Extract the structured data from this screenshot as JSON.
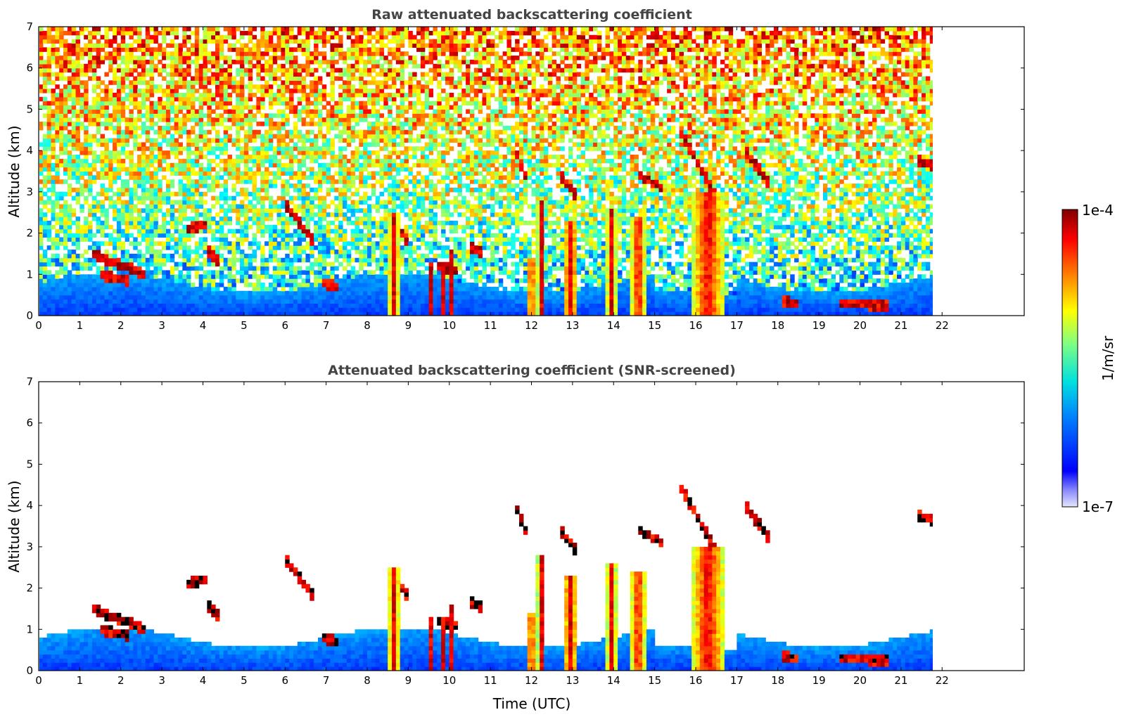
{
  "chart_data": [
    {
      "type": "heatmap",
      "title": "Raw attenuated backscattering coefficient",
      "xlabel": "",
      "ylabel": "Altitude (km)",
      "xlim": [
        0,
        24
      ],
      "ylim": [
        0,
        7
      ],
      "xticks": [
        "0",
        "1",
        "2",
        "3",
        "4",
        "5",
        "6",
        "7",
        "8",
        "9",
        "10",
        "11",
        "12",
        "13",
        "14",
        "15",
        "16",
        "17",
        "18",
        "19",
        "20",
        "21",
        "22"
      ],
      "yticks": [
        "0",
        "1",
        "2",
        "3",
        "4",
        "5",
        "6",
        "7"
      ],
      "data_time_range": [
        0,
        21.8
      ],
      "screened": false,
      "colormap": "jet",
      "color_scale": "log",
      "features": {
        "boundary_layer_top_km": 0.8,
        "precipitation_shafts": [
          {
            "t": 8.65,
            "width": 0.25,
            "top": 2.5
          },
          {
            "t": 9.55,
            "width": 0.12,
            "top": 1.3
          },
          {
            "t": 9.85,
            "width": 0.15,
            "top": 1.3
          },
          {
            "t": 10.05,
            "width": 0.18,
            "top": 1.6
          },
          {
            "t": 12.0,
            "width": 0.2,
            "top": 1.4
          },
          {
            "t": 12.25,
            "width": 0.2,
            "top": 2.8
          },
          {
            "t": 12.95,
            "width": 0.35,
            "top": 2.3
          },
          {
            "t": 13.95,
            "width": 0.22,
            "top": 2.6
          },
          {
            "t": 14.6,
            "width": 0.35,
            "top": 2.4
          },
          {
            "t": 16.3,
            "width": 0.8,
            "top": 3.0
          }
        ],
        "cloud_segments": [
          {
            "t0": 1.3,
            "t1": 2.6,
            "a0": 1.5,
            "a1": 1.0
          },
          {
            "t0": 1.5,
            "t1": 2.2,
            "a0": 1.0,
            "a1": 0.85
          },
          {
            "t0": 3.6,
            "t1": 4.1,
            "a0": 2.1,
            "a1": 2.2
          },
          {
            "t0": 4.1,
            "t1": 4.4,
            "a0": 1.6,
            "a1": 1.3
          },
          {
            "t0": 6.0,
            "t1": 6.7,
            "a0": 2.7,
            "a1": 1.8
          },
          {
            "t0": 6.9,
            "t1": 7.3,
            "a0": 0.8,
            "a1": 0.7
          },
          {
            "t0": 8.5,
            "t1": 9.0,
            "a0": 2.4,
            "a1": 1.8
          },
          {
            "t0": 9.7,
            "t1": 10.2,
            "a0": 1.2,
            "a1": 1.1
          },
          {
            "t0": 10.5,
            "t1": 10.8,
            "a0": 1.7,
            "a1": 1.5
          },
          {
            "t0": 11.6,
            "t1": 11.9,
            "a0": 4.0,
            "a1": 3.3
          },
          {
            "t0": 12.7,
            "t1": 13.1,
            "a0": 3.4,
            "a1": 2.9
          },
          {
            "t0": 14.6,
            "t1": 15.2,
            "a0": 3.4,
            "a1": 3.1
          },
          {
            "t0": 15.6,
            "t1": 16.5,
            "a0": 4.5,
            "a1": 2.9
          },
          {
            "t0": 17.2,
            "t1": 17.8,
            "a0": 4.0,
            "a1": 3.2
          },
          {
            "t0": 18.1,
            "t1": 18.5,
            "a0": 0.35,
            "a1": 0.3
          },
          {
            "t0": 19.5,
            "t1": 20.7,
            "a0": 0.3,
            "a1": 0.25
          },
          {
            "t0": 21.4,
            "t1": 21.8,
            "a0": 3.75,
            "a1": 3.65
          }
        ]
      }
    },
    {
      "type": "heatmap",
      "title": "Attenuated backscattering coefficient (SNR-screened)",
      "xlabel": "Time (UTC)",
      "ylabel": "Altitude (km)",
      "xlim": [
        0,
        24
      ],
      "ylim": [
        0,
        7
      ],
      "xticks": [
        "0",
        "1",
        "2",
        "3",
        "4",
        "5",
        "6",
        "7",
        "8",
        "9",
        "10",
        "11",
        "12",
        "13",
        "14",
        "15",
        "16",
        "17",
        "18",
        "19",
        "20",
        "21",
        "22"
      ],
      "yticks": [
        "0",
        "1",
        "2",
        "3",
        "4",
        "5",
        "6",
        "7"
      ],
      "data_time_range": [
        0,
        21.8
      ],
      "screened": true,
      "colormap": "jet",
      "color_scale": "log"
    }
  ],
  "colorbar": {
    "max_label": "1e-4",
    "min_label": "1e-7",
    "unit_label": "1/m/sr"
  }
}
